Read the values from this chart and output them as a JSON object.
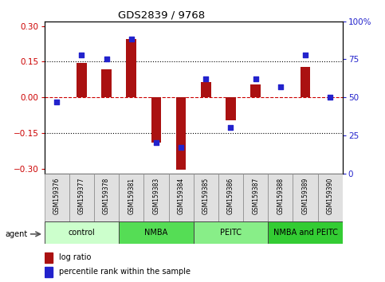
{
  "title": "GDS2839 / 9768",
  "samples": [
    "GSM159376",
    "GSM159377",
    "GSM159378",
    "GSM159381",
    "GSM159383",
    "GSM159384",
    "GSM159385",
    "GSM159386",
    "GSM159387",
    "GSM159388",
    "GSM159389",
    "GSM159390"
  ],
  "log_ratio": [
    0.0,
    0.143,
    0.118,
    0.245,
    -0.19,
    -0.305,
    0.065,
    -0.095,
    0.055,
    0.0,
    0.128,
    0.0
  ],
  "percentile": [
    47,
    78,
    75,
    88,
    20,
    17,
    62,
    30,
    62,
    57,
    78,
    50
  ],
  "groups": [
    {
      "label": "control",
      "start": 0,
      "end": 3,
      "color": "#ccffcc"
    },
    {
      "label": "NMBA",
      "start": 3,
      "end": 6,
      "color": "#55dd55"
    },
    {
      "label": "PEITC",
      "start": 6,
      "end": 9,
      "color": "#88ee88"
    },
    {
      "label": "NMBA and PEITC",
      "start": 9,
      "end": 12,
      "color": "#33cc33"
    }
  ],
  "bar_color": "#aa1111",
  "dot_color": "#2222cc",
  "zero_line_color": "#cc0000",
  "ylim": [
    -0.32,
    0.32
  ],
  "yticks_left": [
    -0.3,
    -0.15,
    0.0,
    0.15,
    0.3
  ],
  "yticks_right": [
    0,
    25,
    50,
    75,
    100
  ],
  "ytick_right_labels": [
    "0",
    "25",
    "50",
    "75",
    "100%"
  ],
  "background_color": "#ffffff",
  "legend_items": [
    {
      "label": "log ratio",
      "color": "#aa1111"
    },
    {
      "label": "percentile rank within the sample",
      "color": "#2222cc"
    }
  ]
}
